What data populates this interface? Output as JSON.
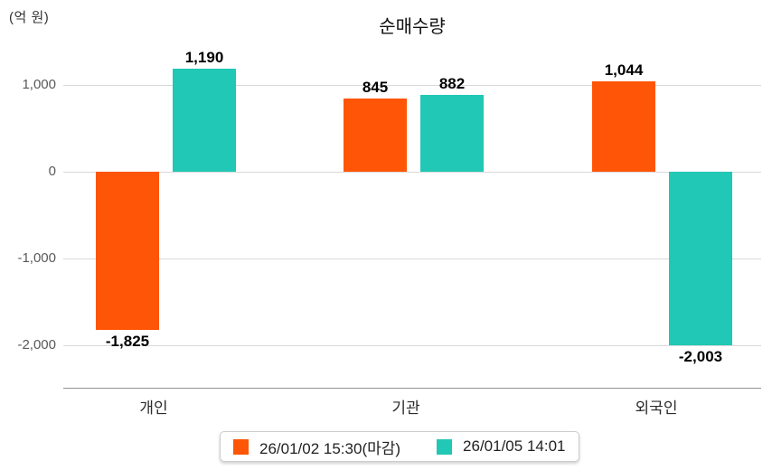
{
  "chart_data": {
    "type": "bar",
    "title": "순매수량",
    "unit_label": "(억 원)",
    "categories": [
      "개인",
      "기관",
      "외국인"
    ],
    "series": [
      {
        "name": "26/01/02 15:30(마감)",
        "color": "#ff5506",
        "values": [
          -1825,
          845,
          1044
        ],
        "value_labels": [
          "-1,825",
          "845",
          "1,044"
        ]
      },
      {
        "name": "26/01/05 14:01",
        "color": "#20c8b5",
        "values": [
          1190,
          882,
          -2003
        ],
        "value_labels": [
          "1,190",
          "882",
          "-2,003"
        ]
      }
    ],
    "y_axis": {
      "ticks": [
        1000,
        0,
        -1000,
        -2000
      ],
      "tick_labels": [
        "1,000",
        "0",
        "-1,000",
        "-2,000"
      ],
      "min": -2000,
      "max": 1000
    },
    "grid": true,
    "legend_position": "bottom"
  }
}
